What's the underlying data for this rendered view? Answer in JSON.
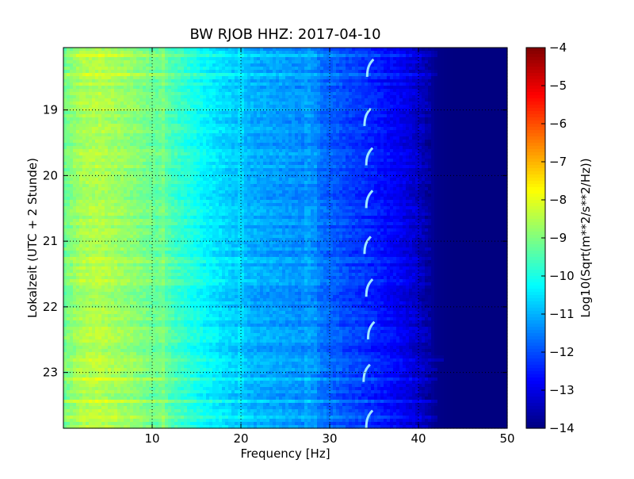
{
  "chart_data": {
    "type": "heatmap",
    "title": "BW RJOB HHZ: 2017-04-10",
    "xlabel": "Frequency [Hz]",
    "ylabel": "Lokalzeit (UTC + 2 Stunde)",
    "xlim": [
      0,
      50
    ],
    "ylim": [
      18.05,
      23.85
    ],
    "y_inverted": true,
    "x_ticks": [
      10,
      20,
      30,
      40,
      50
    ],
    "y_ticks": [
      19,
      20,
      21,
      22,
      23
    ],
    "grid": true,
    "colormap": "jet",
    "colorbar": {
      "label": "Log10(Sqrt(m**2/s**2/Hz))",
      "range": [
        -14,
        -4
      ],
      "ticks": [
        -4,
        -5,
        -6,
        -7,
        -8,
        -9,
        -10,
        -11,
        -12,
        -13,
        -14
      ]
    },
    "spectrum_profile": {
      "frequency_hz": [
        0,
        2,
        4,
        6,
        8,
        10,
        12,
        14,
        16,
        18,
        20,
        22,
        24,
        26,
        28,
        30,
        32,
        34,
        36,
        38,
        40,
        41,
        42,
        44,
        46,
        48,
        50
      ],
      "log10_amplitude": [
        -9.2,
        -8.6,
        -8.5,
        -8.7,
        -8.9,
        -9.2,
        -9.5,
        -9.9,
        -10.3,
        -10.6,
        -10.9,
        -11.1,
        -11.2,
        -11.3,
        -11.5,
        -11.8,
        -12.1,
        -12.3,
        -12.6,
        -12.9,
        -13.3,
        -13.6,
        -13.9,
        -14,
        -14,
        -14,
        -14
      ]
    },
    "spectral_lines": [
      {
        "frequency_hz": 11.2,
        "delta": 0.35
      },
      {
        "frequency_hz": 20.0,
        "delta": 0.3
      },
      {
        "frequency_hz": 27.5,
        "delta": 0.3
      },
      {
        "frequency_hz": 28.3,
        "delta": 0.25
      }
    ],
    "noise_bursts": [
      {
        "time": 18.15,
        "delta": 0.5,
        "fmax": 42
      },
      {
        "time": 18.45,
        "delta": 0.4,
        "fmax": 42
      },
      {
        "time": 19.65,
        "delta": 0.3,
        "fmax": 40
      },
      {
        "time": 21.3,
        "delta": 0.35,
        "fmax": 40
      },
      {
        "time": 21.6,
        "delta": 0.4,
        "fmax": 40
      },
      {
        "time": 22.8,
        "delta": 0.5,
        "fmax": 43
      },
      {
        "time": 22.95,
        "delta": 0.4,
        "fmax": 42
      },
      {
        "time": 23.1,
        "delta": 0.4,
        "fmax": 42
      },
      {
        "time": 23.45,
        "delta": 0.5,
        "fmax": 42
      },
      {
        "time": 23.7,
        "delta": 0.6,
        "fmax": 42
      }
    ],
    "tonal_events": [
      {
        "time": 18.35,
        "frequency_hz": 34.4
      },
      {
        "time": 19.1,
        "frequency_hz": 34.1
      },
      {
        "time": 19.7,
        "frequency_hz": 34.3
      },
      {
        "time": 20.35,
        "frequency_hz": 34.3
      },
      {
        "time": 21.05,
        "frequency_hz": 34.1
      },
      {
        "time": 21.7,
        "frequency_hz": 34.3
      },
      {
        "time": 22.35,
        "frequency_hz": 34.5
      },
      {
        "time": 23.0,
        "frequency_hz": 34.0
      },
      {
        "time": 23.7,
        "frequency_hz": 34.3
      }
    ]
  }
}
